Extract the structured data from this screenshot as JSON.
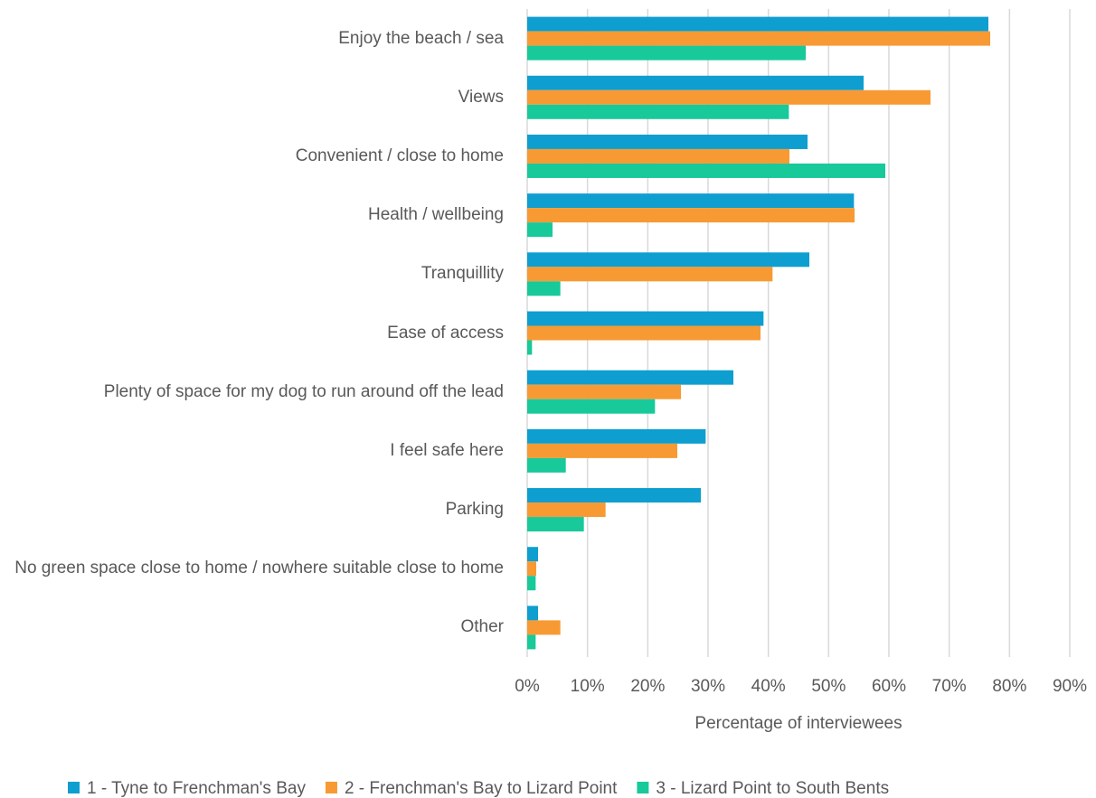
{
  "chart_data": {
    "type": "barh",
    "categories": [
      "Enjoy the beach / sea",
      "Views",
      "Convenient / close to home",
      "Health / wellbeing",
      "Tranquillity",
      "Ease of access",
      "Plenty of space for my dog to run around off the lead",
      "I feel safe here",
      "Parking",
      "No green space close to home / nowhere suitable close to home",
      "Other"
    ],
    "series": [
      {
        "name": "1 - Tyne to Frenchman's Bay",
        "color": "#0e9ed0",
        "values": [
          76.5,
          55.8,
          46.5,
          54.2,
          46.8,
          39.2,
          34.2,
          29.6,
          28.8,
          1.8,
          1.8
        ]
      },
      {
        "name": "2 - Frenchman's Bay to Lizard Point",
        "color": "#f79a33",
        "values": [
          76.8,
          66.9,
          43.5,
          54.3,
          40.7,
          38.7,
          25.5,
          24.9,
          13.0,
          1.5,
          5.5
        ]
      },
      {
        "name": "3 - Lizard Point to South Bents",
        "color": "#18c99a",
        "values": [
          46.2,
          43.4,
          59.4,
          4.2,
          5.5,
          0.8,
          21.2,
          6.4,
          9.4,
          1.4,
          1.4
        ]
      }
    ],
    "xlabel": "Percentage of interviewees",
    "xlim": [
      0,
      90
    ],
    "xticks": [
      {
        "value": 0,
        "label": "0%"
      },
      {
        "value": 10,
        "label": "10%"
      },
      {
        "value": 20,
        "label": "20%"
      },
      {
        "value": 30,
        "label": "30%"
      },
      {
        "value": 40,
        "label": "40%"
      },
      {
        "value": 50,
        "label": "50%"
      },
      {
        "value": 60,
        "label": "60%"
      },
      {
        "value": 70,
        "label": "70%"
      },
      {
        "value": 80,
        "label": "80%"
      },
      {
        "value": 90,
        "label": "90%"
      }
    ],
    "grid": true,
    "legend": "bottom"
  }
}
